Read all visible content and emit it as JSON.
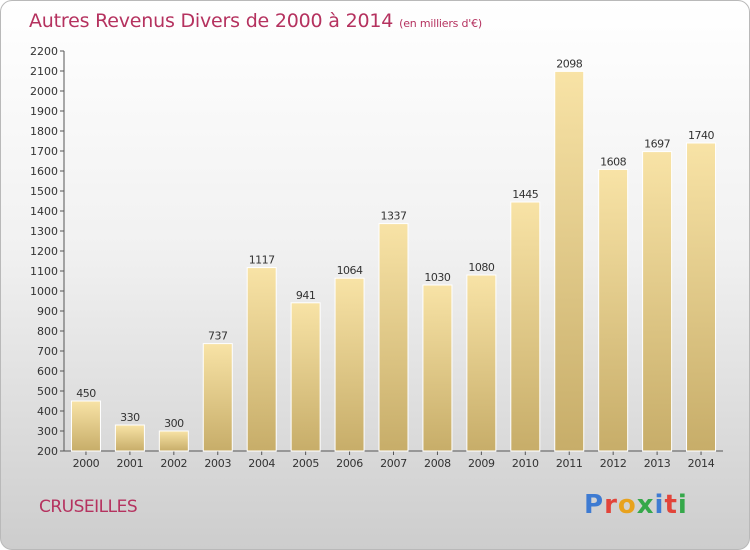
{
  "header": {
    "title": "Autres Revenus Divers de 2000 à 2014",
    "subtitle": "(en milliers d'€)"
  },
  "footer": {
    "location": "CRUSEILLES",
    "logo": "Proxiti"
  },
  "colors": {
    "title": "#b5325f",
    "bar_light": "#f8e3a6",
    "bar_dark": "#c7ad69",
    "logo_letters": [
      "#3e7bd2",
      "#e2443a",
      "#e8a21d",
      "#35a84a",
      "#3e7bd2",
      "#e2443a",
      "#35a84a"
    ]
  },
  "chart_data": {
    "type": "bar",
    "title": "Autres Revenus Divers de 2000 à 2014",
    "subtitle": "(en milliers d'€)",
    "categories": [
      "2000",
      "2001",
      "2002",
      "2003",
      "2004",
      "2005",
      "2006",
      "2007",
      "2008",
      "2009",
      "2010",
      "2011",
      "2012",
      "2013",
      "2014"
    ],
    "values": [
      450,
      330,
      300,
      737,
      1117,
      941,
      1064,
      1337,
      1030,
      1080,
      1445,
      2098,
      1608,
      1697,
      1740
    ],
    "ylim": [
      200,
      2200
    ],
    "yticks": [
      200,
      300,
      400,
      500,
      600,
      700,
      800,
      900,
      1000,
      1100,
      1200,
      1300,
      1400,
      1500,
      1600,
      1700,
      1800,
      1900,
      2000,
      2100,
      2200
    ],
    "grid": false,
    "data_labels": true
  }
}
